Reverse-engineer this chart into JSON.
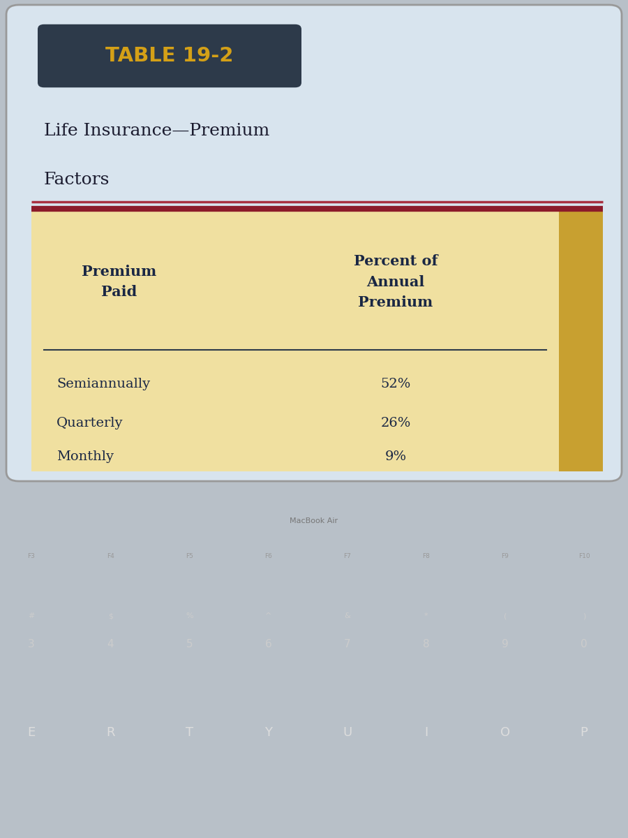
{
  "table_label": "TABLE 19-2",
  "table_label_bg": "#2d3a4a",
  "table_label_color": "#d4a017",
  "subtitle_line1": "Life Insurance—Premium",
  "subtitle_line2": "Factors",
  "subtitle_color": "#1a1a2e",
  "header_col1": "Premium\nPaid",
  "header_col2": "Percent of\nAnnual\nPremium",
  "header_color": "#1a2744",
  "rows": [
    [
      "Semiannually",
      "52%"
    ],
    [
      "Quarterly",
      "26%"
    ],
    [
      "Monthly",
      "9%"
    ]
  ],
  "row_text_color": "#1a2744",
  "table_bg": "#f0e0a0",
  "right_accent_color": "#c8a030",
  "top_border_dark": "#8b1a2a",
  "top_border_light": "#a83040",
  "separator_line_color": "#2d3a4a",
  "page_bg": "#b8c0c8",
  "card_bg": "#d8e4ee",
  "keyboard_bg": "#1a1a1a",
  "screen_frame": "#2a2a2a"
}
